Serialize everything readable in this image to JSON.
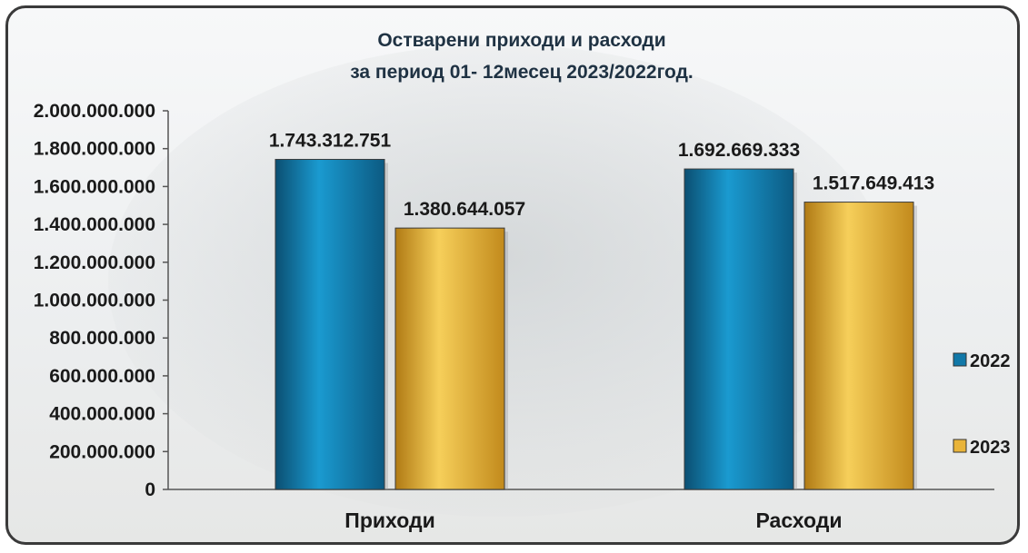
{
  "chart_data": {
    "type": "bar",
    "title": [
      "Остварени приходи и расходи",
      "за период 01- 12месец  2023/2022год."
    ],
    "categories": [
      "Приходи",
      "Расходи"
    ],
    "series": [
      {
        "name": "2022",
        "values": [
          1743312751,
          1692669333
        ],
        "labels": [
          "1.743.312.751",
          "1.692.669.333"
        ],
        "color": "#1178a8"
      },
      {
        "name": "2023",
        "values": [
          1380644057,
          1517649413
        ],
        "labels": [
          "1.380.644.057",
          "1.517.649.413"
        ],
        "color": "#e9b43a"
      }
    ],
    "ylim": [
      0,
      2000000000
    ],
    "yticks": [
      "0",
      "200.000.000",
      "400.000.000",
      "600.000.000",
      "800.000.000",
      "1.000.000.000",
      "1.200.000.000",
      "1.400.000.000",
      "1.600.000.000",
      "1.800.000.000",
      "2.000.000.000"
    ],
    "grid": false,
    "legend_position": "right"
  }
}
